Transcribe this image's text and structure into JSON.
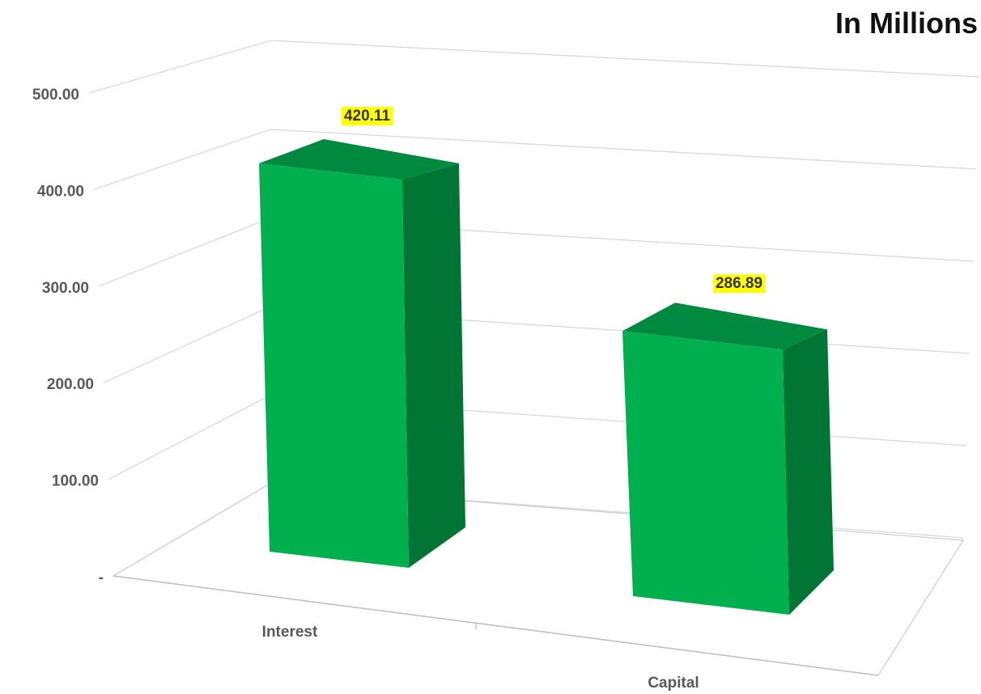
{
  "chart_data": {
    "type": "bar",
    "style": "3d-column",
    "title": "In Millions",
    "categories": [
      "Interest",
      "Capital"
    ],
    "series": [
      {
        "values": [
          420.11,
          286.89
        ]
      }
    ],
    "data_labels": [
      "420.11",
      "286.89"
    ],
    "y_ticks": [
      0,
      100,
      200,
      300,
      400,
      500
    ],
    "y_tick_labels": [
      "-",
      "100.00",
      "200.00",
      "300.00",
      "400.00",
      "500.00"
    ],
    "ylim": [
      0,
      500
    ],
    "grid": true,
    "legend": "none",
    "colors": {
      "bar_front": "#00b04f",
      "bar_side": "#007534",
      "bar_top": "#008a40",
      "label_bg": "#ffff00",
      "grid": "#d9d9d9",
      "axis_text": "#595959"
    }
  }
}
